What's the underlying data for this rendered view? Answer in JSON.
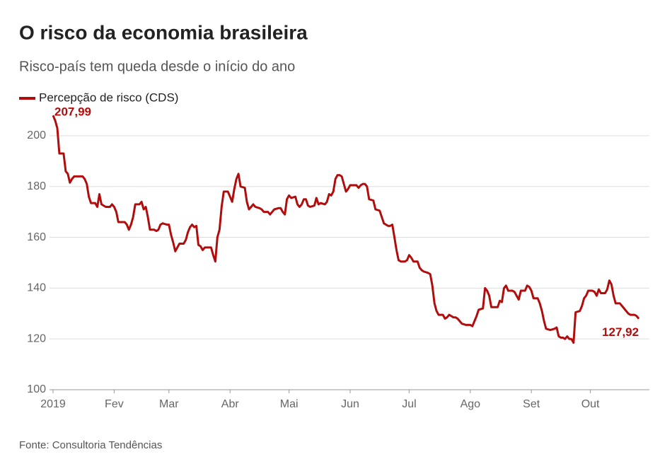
{
  "chart_data": {
    "type": "line",
    "title": "O risco da economia brasileira",
    "subtitle": "Risco-país tem queda desde o início do ano",
    "source": "Fonte: Consultoria Tendências",
    "start_label": "207,99",
    "end_label": "127,92",
    "legend": "top-left",
    "grid": true,
    "xlim": [
      0,
      283
    ],
    "xticks": [
      {
        "value": 0,
        "label": "2019"
      },
      {
        "value": 29,
        "label": "Fev"
      },
      {
        "value": 55,
        "label": "Mar"
      },
      {
        "value": 84,
        "label": "Abr"
      },
      {
        "value": 112,
        "label": "Mai"
      },
      {
        "value": 141,
        "label": "Jun"
      },
      {
        "value": 169,
        "label": "Jul"
      },
      {
        "value": 198,
        "label": "Ago"
      },
      {
        "value": 227,
        "label": "Set"
      },
      {
        "value": 255,
        "label": "Out"
      }
    ],
    "ylim": [
      100,
      210
    ],
    "yticks": [
      100,
      120,
      140,
      160,
      180,
      200
    ],
    "x": [
      0,
      1,
      2,
      3,
      5,
      6,
      7,
      8,
      9,
      10,
      14,
      15,
      16,
      17,
      18,
      20,
      21,
      22,
      23,
      25,
      27,
      28,
      29,
      30,
      31,
      34,
      35,
      36,
      37,
      38,
      39,
      41,
      42,
      43,
      44,
      45,
      46,
      48,
      49,
      50,
      51,
      52,
      54,
      55,
      56,
      57,
      58,
      59,
      60,
      62,
      63,
      64,
      65,
      66,
      67,
      68,
      69,
      70,
      71,
      72,
      75,
      76,
      77,
      78,
      79,
      80,
      81,
      83,
      84,
      85,
      86,
      87,
      88,
      89,
      91,
      92,
      93,
      94,
      95,
      96,
      98,
      99,
      100,
      102,
      103,
      104,
      105,
      107,
      108,
      109,
      110,
      111,
      112,
      113,
      115,
      116,
      117,
      118,
      119,
      120,
      121,
      122,
      124,
      125,
      126,
      127,
      129,
      130,
      131,
      132,
      133,
      134,
      135,
      136,
      137,
      138,
      139,
      140,
      141,
      144,
      145,
      146,
      147,
      148,
      149,
      150,
      152,
      153,
      155,
      156,
      157,
      158,
      159,
      160,
      161,
      162,
      163,
      164,
      165,
      167,
      168,
      169,
      170,
      171,
      173,
      174,
      175,
      176,
      178,
      179,
      180,
      181,
      182,
      183,
      185,
      186,
      187,
      188,
      189,
      190,
      191,
      192,
      193,
      194,
      196,
      198,
      199,
      200,
      201,
      202,
      204,
      205,
      206,
      207,
      208,
      210,
      211,
      212,
      213,
      214,
      215,
      216,
      218,
      219,
      220,
      221,
      222,
      224,
      225,
      226,
      227,
      228,
      230,
      231,
      232,
      233,
      234,
      236,
      238,
      239,
      240,
      241,
      242,
      243,
      244,
      245,
      246,
      247,
      248,
      250,
      251,
      252,
      253,
      254,
      256,
      257,
      258,
      259,
      260,
      262,
      263,
      264,
      265,
      266,
      267,
      269,
      270,
      272,
      273,
      274,
      276,
      277,
      278
    ],
    "series": [
      {
        "name": "Percepção de risco (CDS)",
        "color": "#b20d0d",
        "values": [
          207.99,
          206,
          203,
          193,
          193,
          186,
          185,
          181.5,
          183,
          184,
          184,
          183,
          181,
          176,
          173.5,
          173.5,
          172,
          177,
          173,
          172,
          172,
          173,
          172,
          170,
          166,
          166,
          165,
          163,
          165,
          168,
          173,
          173,
          174,
          171,
          172,
          168,
          163,
          163,
          162.5,
          163,
          165,
          165.5,
          165,
          165,
          161,
          158,
          154.5,
          156,
          157.5,
          157.5,
          159,
          162,
          164,
          165,
          164,
          164.5,
          157,
          156.5,
          155,
          156,
          156,
          153,
          150.5,
          160,
          163,
          172,
          178,
          178,
          176,
          174,
          179,
          183,
          185,
          180,
          179.5,
          174,
          171,
          172,
          173,
          172,
          171.5,
          171,
          170,
          170,
          169,
          170,
          171,
          171.5,
          171.5,
          170,
          169,
          175,
          176.5,
          175.5,
          176,
          173,
          172,
          173,
          175,
          175,
          172.5,
          172,
          172.5,
          175.5,
          173,
          173.5,
          173,
          174,
          177,
          176.5,
          178,
          183,
          184.5,
          184.5,
          184,
          181,
          178,
          179,
          180.5,
          180.5,
          179.5,
          180.5,
          181,
          181,
          180,
          175,
          174.5,
          171,
          170.5,
          168,
          165.5,
          165,
          164.5,
          164.5,
          165,
          160,
          155,
          151,
          150.5,
          150.5,
          151,
          153,
          152,
          150.5,
          150.5,
          148,
          147,
          146.5,
          146,
          145.5,
          141,
          134,
          131,
          129.5,
          129.5,
          128,
          128.5,
          129.5,
          129,
          128.5,
          128.5,
          128,
          127,
          126,
          125.5,
          125.5,
          125,
          127,
          129,
          131.5,
          132,
          140,
          139,
          137,
          132.5,
          132.5,
          132.5,
          135,
          134.5,
          140,
          141,
          139,
          139,
          138.5,
          137,
          135.5,
          139,
          139,
          141,
          140.5,
          139,
          136,
          136,
          134,
          131,
          127,
          124,
          123.5,
          124,
          124.5,
          121,
          120.5,
          120.5,
          120,
          121,
          120,
          120,
          118.5,
          130.5,
          131,
          133,
          136,
          137,
          139,
          139,
          138.5,
          137,
          139.5,
          138,
          138,
          139.5,
          143,
          141.5,
          137,
          134,
          134,
          133,
          131,
          130,
          129.5,
          129.5,
          129,
          127.92
        ]
      }
    ]
  }
}
